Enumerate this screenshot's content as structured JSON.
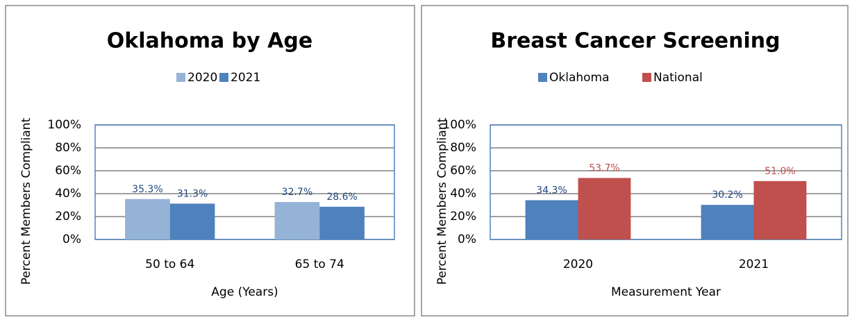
{
  "chart_data": [
    {
      "type": "bar",
      "title": "Oklahoma by Age",
      "x_label": "Age (Years)",
      "y_label": "Percent Members Compliant",
      "categories": [
        "50 to 64",
        "65 to 74"
      ],
      "series": [
        {
          "name": "2020",
          "color": "#95b3d7",
          "values": [
            35.3,
            32.7
          ],
          "value_labels": [
            "35.3%",
            "32.7%"
          ]
        },
        {
          "name": "2021",
          "color": "#4f81bd",
          "values": [
            31.3,
            28.6
          ],
          "value_labels": [
            "31.3%",
            "28.6%"
          ]
        }
      ],
      "ylim": [
        0,
        100
      ],
      "yticks": [
        {
          "value": 0,
          "label": "0%"
        },
        {
          "value": 20,
          "label": "20%"
        },
        {
          "value": 40,
          "label": "40%"
        },
        {
          "value": 60,
          "label": "60%"
        },
        {
          "value": 80,
          "label": "80%"
        },
        {
          "value": 100,
          "label": "100%"
        }
      ],
      "grid": true,
      "legend": "top"
    },
    {
      "type": "bar",
      "title": "Breast Cancer Screening",
      "x_label": "Measurement Year",
      "y_label": "Percent Members Compliant",
      "categories": [
        "2020",
        "2021"
      ],
      "series": [
        {
          "name": "Oklahoma",
          "color": "#4f81bd",
          "values": [
            34.3,
            30.2
          ],
          "value_labels": [
            "34.3%",
            "30.2%"
          ]
        },
        {
          "name": "National",
          "color": "#c0504d",
          "values": [
            53.7,
            51.0
          ],
          "value_labels": [
            "53.7%",
            "51.0%"
          ]
        }
      ],
      "ylim": [
        0,
        100
      ],
      "yticks": [
        {
          "value": 0,
          "label": "0%"
        },
        {
          "value": 20,
          "label": "20%"
        },
        {
          "value": 40,
          "label": "40%"
        },
        {
          "value": 60,
          "label": "60%"
        },
        {
          "value": 80,
          "label": "80%"
        },
        {
          "value": 100,
          "label": "100%"
        }
      ],
      "grid": true,
      "legend": "top"
    }
  ]
}
